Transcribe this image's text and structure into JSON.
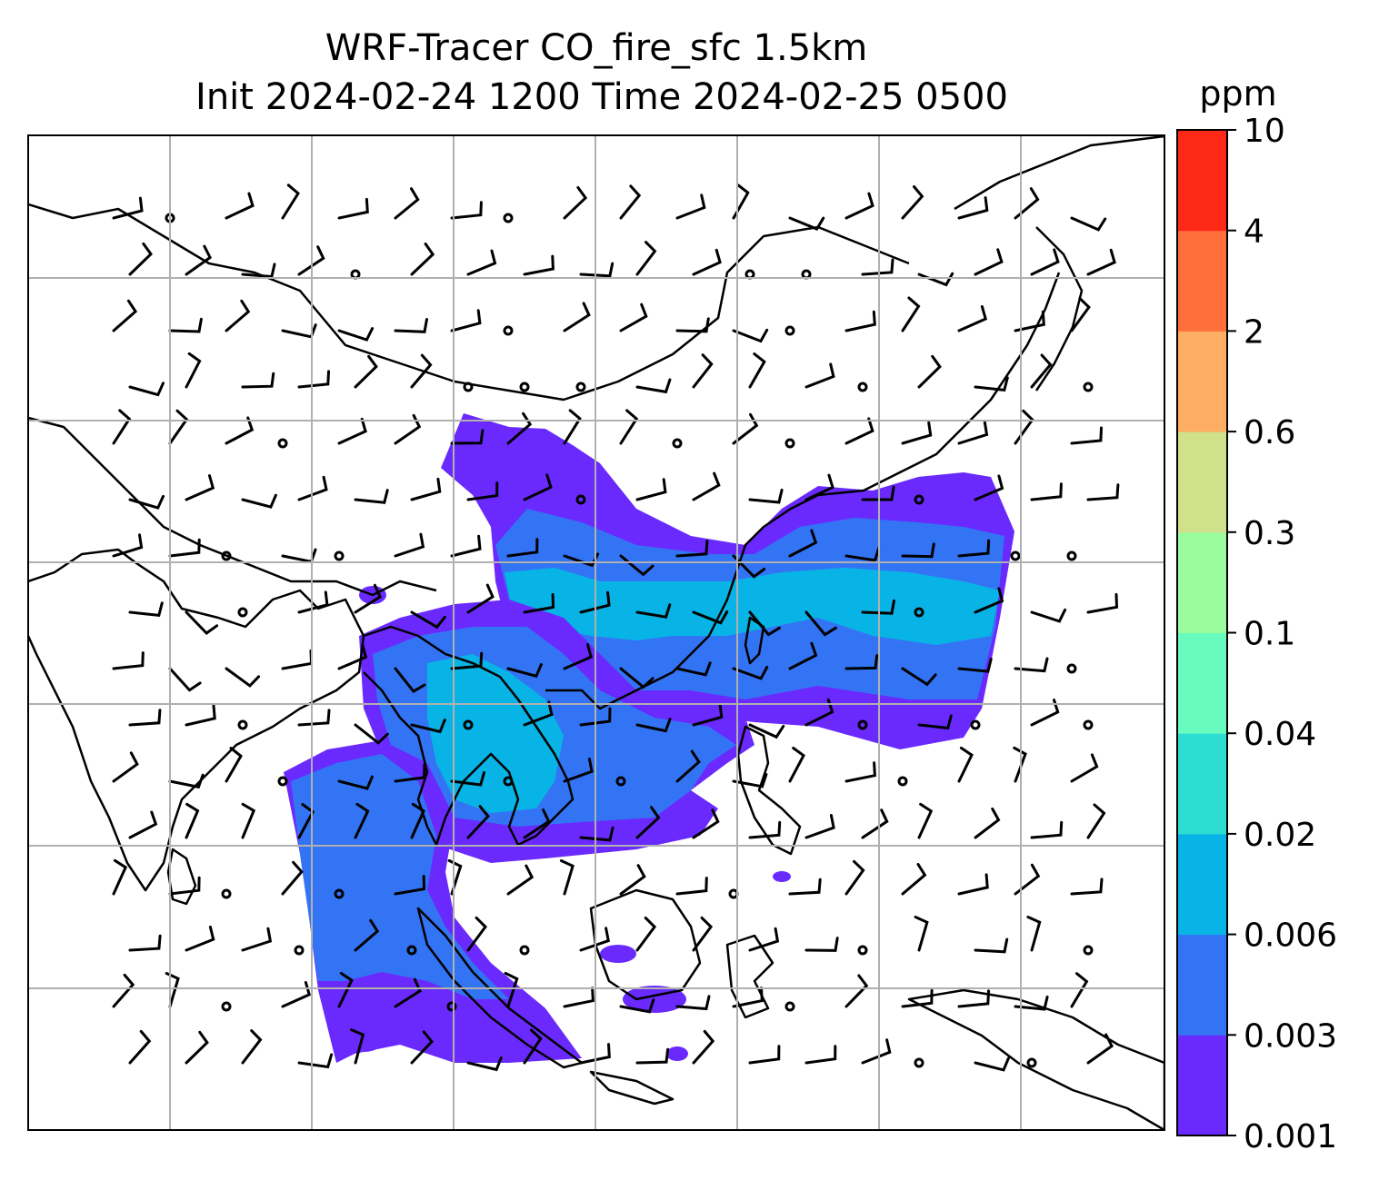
{
  "title": {
    "line1": "WRF-Tracer CO_fire_sfc 1.5km",
    "line2": "Init 2024-02-24 1200 Time 2024-02-25 0500"
  },
  "colorbar": {
    "unit": "ppm",
    "levels": [
      "0.001",
      "0.003",
      "0.006",
      "0.02",
      "0.04",
      "0.1",
      "0.3",
      "0.6",
      "2",
      "4",
      "10"
    ],
    "colors": [
      "#6a2afe",
      "#3374f5",
      "#08b4e6",
      "#2dddd2",
      "#68fbbe",
      "#9afc9c",
      "#cfe18a",
      "#feae63",
      "#fe6f3c",
      "#fe2816"
    ]
  },
  "map": {
    "concentration_color_low": "#6a2afe",
    "concentration_color_mid": "#3374f5",
    "concentration_color_high": "#08b4e6",
    "wind_barb_color": "#000000",
    "gridline_color": "#b0b0b0"
  }
}
